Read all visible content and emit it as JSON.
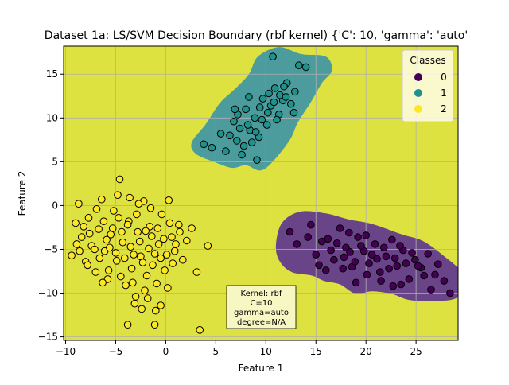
{
  "chart_data": {
    "type": "scatter",
    "title": "Dataset 1a: LS/SVM Decision Boundary (rbf kernel) {'C': 10, 'gamma': 'auto'",
    "xlabel": "Feature 1",
    "ylabel": "Feature 2",
    "xlim": [
      -10.2,
      29.2
    ],
    "ylim": [
      -15.4,
      18.2
    ],
    "xticks": [
      -10,
      -5,
      0,
      5,
      10,
      15,
      20,
      25
    ],
    "yticks": [
      -15,
      -10,
      -5,
      0,
      5,
      10,
      15
    ],
    "grid": true,
    "legend": {
      "title": "Classes",
      "placement": "top-right",
      "entries": [
        "0",
        "1",
        "2"
      ]
    },
    "colors": {
      "class_0": "#440154",
      "class_1": "#21918c",
      "class_2": "#fde725",
      "region_0": "#6a4488",
      "region_1": "#4c9c9e",
      "region_2": "#dde241",
      "grid": "#b0b0b0"
    },
    "annotation": [
      "Kernel: rbf",
      "C=10",
      "gamma=auto",
      "degree=N/A"
    ],
    "series": [
      {
        "name": "0",
        "points": [
          [
            13.1,
            -4.4
          ],
          [
            14.5,
            -2.2
          ],
          [
            15.0,
            -5.6
          ],
          [
            16.2,
            -3.8
          ],
          [
            16.8,
            -6.2
          ],
          [
            17.4,
            -2.6
          ],
          [
            18.0,
            -4.8
          ],
          [
            18.6,
            -7.0
          ],
          [
            19.2,
            -3.6
          ],
          [
            19.8,
            -5.2
          ],
          [
            20.3,
            -6.6
          ],
          [
            20.9,
            -4.4
          ],
          [
            21.4,
            -7.6
          ],
          [
            22.0,
            -5.8
          ],
          [
            22.6,
            -3.9
          ],
          [
            23.1,
            -6.9
          ],
          [
            23.7,
            -5.1
          ],
          [
            24.3,
            -8.4
          ],
          [
            24.9,
            -6.2
          ],
          [
            25.5,
            -7.1
          ],
          [
            26.2,
            -5.5
          ],
          [
            26.9,
            -7.9
          ],
          [
            27.8,
            -8.6
          ],
          [
            28.4,
            -10.0
          ],
          [
            15.6,
            -4.1
          ],
          [
            16.5,
            -5.1
          ],
          [
            17.1,
            -4.3
          ],
          [
            17.8,
            -5.9
          ],
          [
            18.3,
            -3.1
          ],
          [
            18.9,
            -6.4
          ],
          [
            19.5,
            -4.6
          ],
          [
            20.0,
            -3.4
          ],
          [
            20.6,
            -5.6
          ],
          [
            21.1,
            -6.1
          ],
          [
            21.8,
            -4.8
          ],
          [
            22.3,
            -7.2
          ],
          [
            22.9,
            -6.0
          ],
          [
            23.4,
            -4.6
          ],
          [
            24.0,
            -6.6
          ],
          [
            24.6,
            -5.4
          ],
          [
            25.2,
            -6.9
          ],
          [
            25.8,
            -8.0
          ],
          [
            19.0,
            -8.8
          ],
          [
            20.1,
            -7.9
          ],
          [
            21.5,
            -8.6
          ],
          [
            22.7,
            -9.2
          ],
          [
            23.5,
            -9.0
          ],
          [
            12.4,
            -3.0
          ],
          [
            15.3,
            -6.8
          ],
          [
            14.2,
            -3.6
          ],
          [
            27.2,
            -6.7
          ],
          [
            26.5,
            -9.6
          ],
          [
            16.0,
            -7.4
          ],
          [
            17.7,
            -7.2
          ],
          [
            18.4,
            -5.3
          ]
        ]
      },
      {
        "name": "1",
        "points": [
          [
            3.8,
            7.0
          ],
          [
            4.6,
            6.6
          ],
          [
            5.5,
            8.2
          ],
          [
            6.0,
            6.2
          ],
          [
            6.8,
            9.6
          ],
          [
            7.1,
            7.4
          ],
          [
            7.6,
            5.8
          ],
          [
            8.0,
            11.0
          ],
          [
            8.4,
            8.6
          ],
          [
            8.9,
            10.0
          ],
          [
            9.3,
            7.8
          ],
          [
            9.7,
            12.2
          ],
          [
            10.1,
            9.2
          ],
          [
            10.5,
            11.4
          ],
          [
            10.9,
            13.4
          ],
          [
            11.3,
            10.4
          ],
          [
            11.7,
            12.0
          ],
          [
            12.1,
            14.0
          ],
          [
            12.5,
            11.6
          ],
          [
            12.9,
            13.0
          ],
          [
            13.3,
            16.0
          ],
          [
            14.0,
            15.8
          ],
          [
            10.7,
            17.0
          ],
          [
            7.2,
            10.4
          ],
          [
            8.2,
            9.2
          ],
          [
            9.0,
            8.4
          ],
          [
            9.6,
            9.8
          ],
          [
            10.2,
            10.6
          ],
          [
            10.8,
            11.8
          ],
          [
            11.4,
            12.6
          ],
          [
            12.0,
            12.4
          ],
          [
            6.4,
            8.0
          ],
          [
            7.8,
            6.8
          ],
          [
            8.6,
            7.2
          ],
          [
            9.4,
            11.2
          ],
          [
            10.3,
            12.8
          ],
          [
            11.1,
            9.8
          ],
          [
            11.8,
            13.6
          ],
          [
            9.1,
            5.2
          ],
          [
            6.9,
            11.0
          ],
          [
            8.3,
            12.4
          ],
          [
            12.8,
            10.6
          ],
          [
            7.4,
            8.8
          ]
        ]
      },
      {
        "name": "2",
        "points": [
          [
            -9.4,
            -5.7
          ],
          [
            -9.0,
            -2.0
          ],
          [
            -8.7,
            0.2
          ],
          [
            -8.4,
            -3.6
          ],
          [
            -8.0,
            -6.4
          ],
          [
            -7.7,
            -1.4
          ],
          [
            -7.4,
            -4.6
          ],
          [
            -7.0,
            -7.6
          ],
          [
            -6.7,
            -2.7
          ],
          [
            -6.4,
            0.7
          ],
          [
            -6.1,
            -5.2
          ],
          [
            -5.8,
            -8.4
          ],
          [
            -5.5,
            -3.3
          ],
          [
            -5.2,
            -0.6
          ],
          [
            -4.9,
            -6.3
          ],
          [
            -4.6,
            3.0
          ],
          [
            -4.3,
            -4.2
          ],
          [
            -4.0,
            -9.1
          ],
          [
            -3.7,
            -1.8
          ],
          [
            -3.4,
            -7.2
          ],
          [
            -3.1,
            -11.2
          ],
          [
            -2.8,
            -3.0
          ],
          [
            -2.5,
            -5.8
          ],
          [
            -2.2,
            0.5
          ],
          [
            -1.9,
            -8.0
          ],
          [
            -1.6,
            -2.4
          ],
          [
            -1.3,
            -6.8
          ],
          [
            -1.0,
            -12.0
          ],
          [
            -0.7,
            -4.4
          ],
          [
            -0.4,
            -1.0
          ],
          [
            -0.1,
            -7.4
          ],
          [
            0.3,
            0.6
          ],
          [
            0.6,
            -3.6
          ],
          [
            0.9,
            -5.2
          ],
          [
            1.3,
            -2.2
          ],
          [
            1.7,
            -6.2
          ],
          [
            2.1,
            -4.0
          ],
          [
            2.6,
            -2.6
          ],
          [
            3.1,
            -7.6
          ],
          [
            4.2,
            -4.6
          ],
          [
            3.4,
            -14.2
          ],
          [
            -3.8,
            -13.6
          ],
          [
            -1.1,
            -13.6
          ],
          [
            -0.5,
            -11.4
          ],
          [
            -8.9,
            -4.4
          ],
          [
            -8.2,
            -2.4
          ],
          [
            -7.6,
            -3.2
          ],
          [
            -7.1,
            -5.0
          ],
          [
            -6.6,
            -6.0
          ],
          [
            -6.2,
            -1.8
          ],
          [
            -5.9,
            -3.9
          ],
          [
            -5.6,
            -4.8
          ],
          [
            -5.3,
            -2.6
          ],
          [
            -5.0,
            -5.4
          ],
          [
            -4.7,
            -1.4
          ],
          [
            -4.4,
            -3.0
          ],
          [
            -4.1,
            -6.0
          ],
          [
            -3.8,
            -2.2
          ],
          [
            -3.5,
            -4.7
          ],
          [
            -3.2,
            -5.6
          ],
          [
            -2.9,
            -1.0
          ],
          [
            -2.6,
            -4.1
          ],
          [
            -2.3,
            -6.5
          ],
          [
            -2.0,
            -2.9
          ],
          [
            -1.7,
            -4.9
          ],
          [
            -1.4,
            -3.5
          ],
          [
            -1.1,
            -5.5
          ],
          [
            -0.8,
            -2.6
          ],
          [
            -0.5,
            -6.0
          ],
          [
            -0.2,
            -3.8
          ],
          [
            0.1,
            -5.6
          ],
          [
            0.4,
            -2.0
          ],
          [
            0.7,
            -6.6
          ],
          [
            1.0,
            -4.4
          ],
          [
            1.4,
            -3.0
          ],
          [
            -6.9,
            -0.4
          ],
          [
            -4.8,
            1.2
          ],
          [
            -3.6,
            0.9
          ],
          [
            -2.7,
            0.2
          ],
          [
            -1.5,
            -0.3
          ],
          [
            -5.7,
            -7.4
          ],
          [
            -4.5,
            -8.1
          ],
          [
            -3.3,
            -8.8
          ],
          [
            -2.1,
            -9.7
          ],
          [
            -0.9,
            -8.9
          ],
          [
            0.2,
            -9.4
          ],
          [
            -6.3,
            -8.8
          ],
          [
            -7.8,
            -6.8
          ],
          [
            -8.6,
            -5.2
          ],
          [
            -3.0,
            -10.4
          ],
          [
            -2.4,
            -11.8
          ],
          [
            -1.8,
            -10.6
          ]
        ]
      }
    ]
  }
}
